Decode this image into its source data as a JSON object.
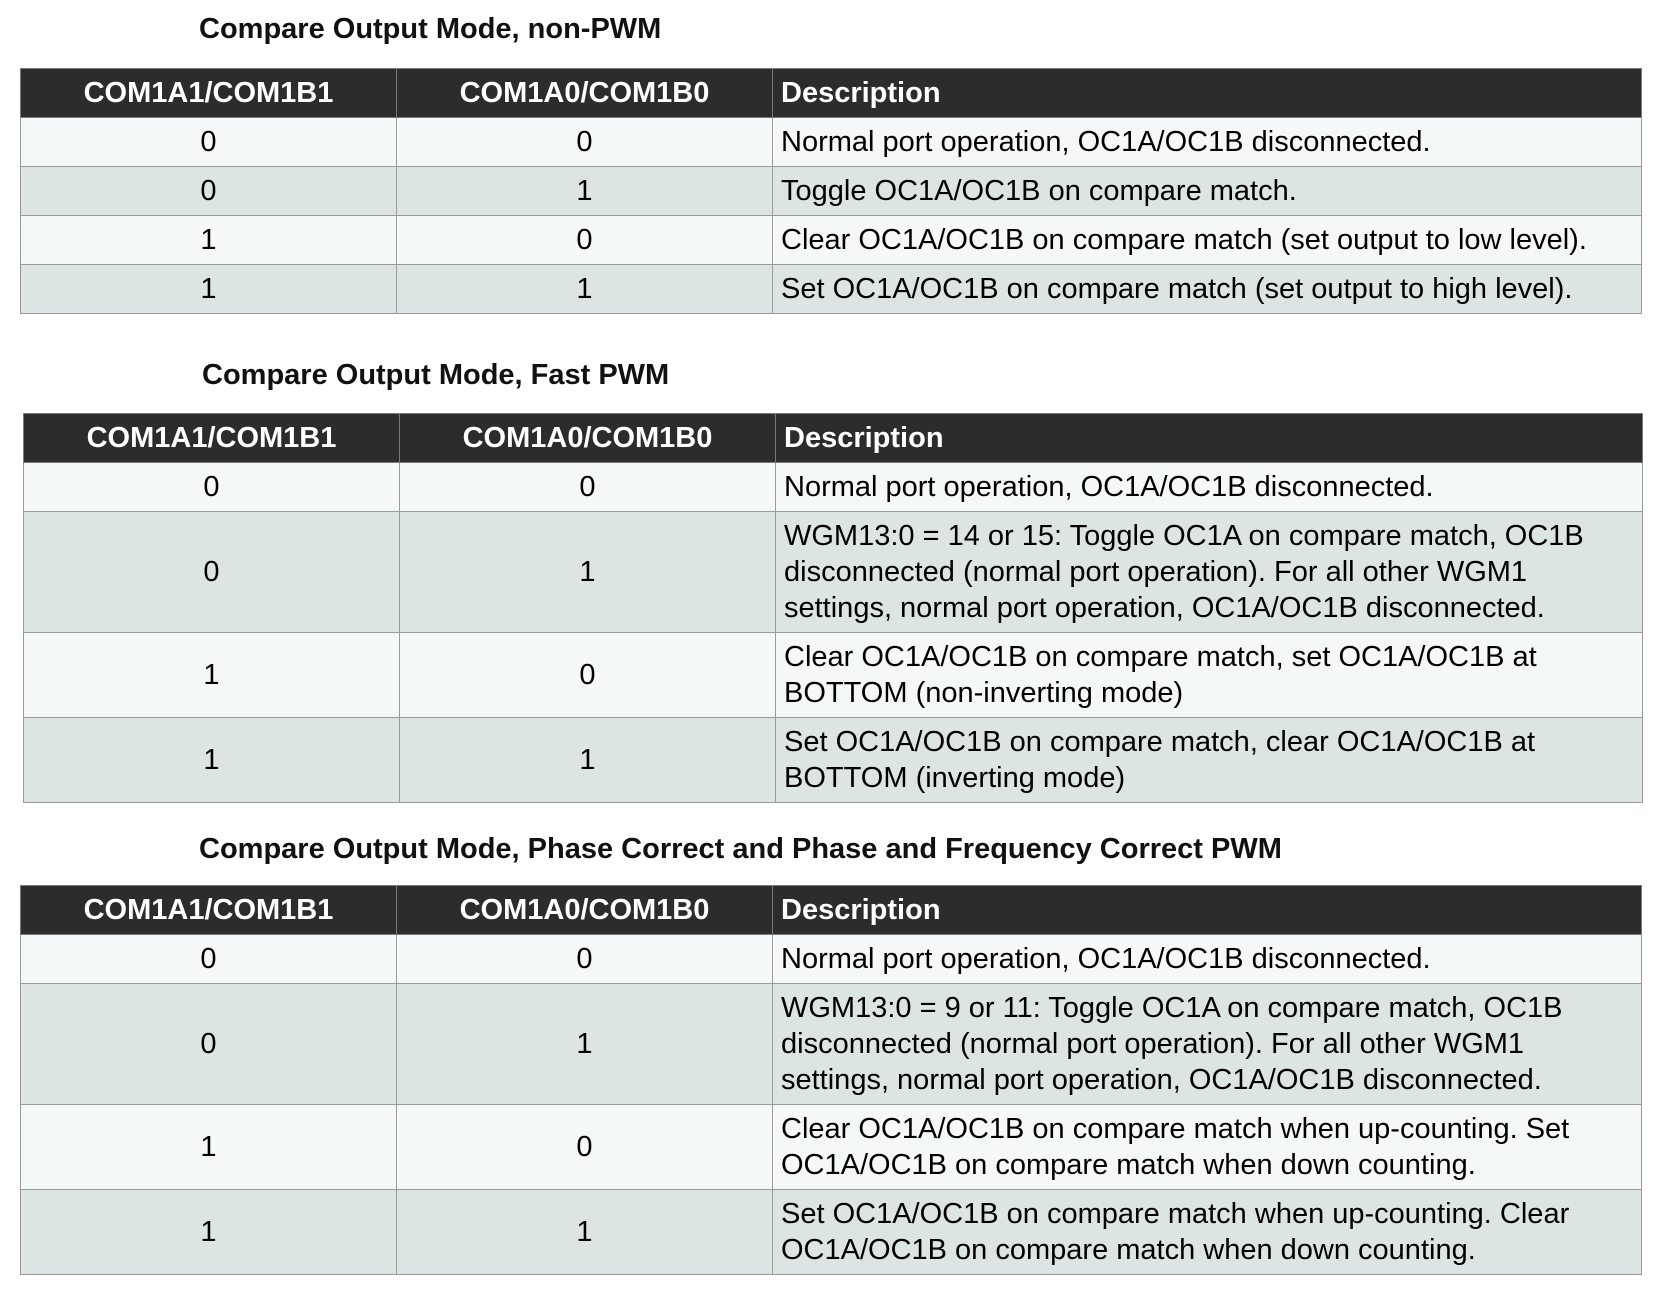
{
  "sections": [
    {
      "title": "Compare Output Mode, non-PWM",
      "headers": [
        "COM1A1/COM1B1",
        "COM1A0/COM1B0",
        "Description"
      ],
      "rows": [
        {
          "a1": "0",
          "a0": "0",
          "desc": [
            "Normal port operation, OC1A/OC1B disconnected."
          ]
        },
        {
          "a1": "0",
          "a0": "1",
          "desc": [
            "Toggle OC1A/OC1B on compare match."
          ]
        },
        {
          "a1": "1",
          "a0": "0",
          "desc": [
            "Clear OC1A/OC1B on compare match (set output to low level)."
          ]
        },
        {
          "a1": "1",
          "a0": "1",
          "desc": [
            "Set OC1A/OC1B on compare match (set output to high level)."
          ]
        }
      ]
    },
    {
      "title": "Compare Output Mode, Fast PWM",
      "headers": [
        "COM1A1/COM1B1",
        "COM1A0/COM1B0",
        "Description"
      ],
      "rows": [
        {
          "a1": "0",
          "a0": "0",
          "desc": [
            "Normal port operation, OC1A/OC1B disconnected."
          ]
        },
        {
          "a1": "0",
          "a0": "1",
          "desc": [
            "WGM13:0 = 14 or 15: Toggle OC1A on compare match, OC1B",
            "disconnected (normal port operation). For all other WGM1",
            "settings, normal port operation, OC1A/OC1B disconnected."
          ]
        },
        {
          "a1": "1",
          "a0": "0",
          "desc": [
            "Clear OC1A/OC1B on compare match, set OC1A/OC1B at",
            "BOTTOM (non-inverting mode)"
          ]
        },
        {
          "a1": "1",
          "a0": "1",
          "desc": [
            "Set OC1A/OC1B on compare match, clear OC1A/OC1B at",
            "BOTTOM (inverting mode)"
          ]
        }
      ]
    },
    {
      "title": "Compare Output Mode, Phase Correct and Phase and Frequency Correct PWM",
      "headers": [
        "COM1A1/COM1B1",
        "COM1A0/COM1B0",
        "Description"
      ],
      "rows": [
        {
          "a1": "0",
          "a0": "0",
          "desc": [
            "Normal port operation, OC1A/OC1B disconnected."
          ]
        },
        {
          "a1": "0",
          "a0": "1",
          "desc": [
            "WGM13:0 = 9 or 11: Toggle OC1A on compare match, OC1B",
            "disconnected (normal port operation). For all other WGM1",
            "settings, normal port operation, OC1A/OC1B disconnected."
          ]
        },
        {
          "a1": "1",
          "a0": "0",
          "desc": [
            "Clear OC1A/OC1B on compare match when up-counting. Set",
            "OC1A/OC1B on compare match when down counting."
          ]
        },
        {
          "a1": "1",
          "a0": "1",
          "desc": [
            "Set OC1A/OC1B on compare match when up-counting. Clear",
            "OC1A/OC1B on compare match when down counting."
          ]
        }
      ]
    }
  ]
}
